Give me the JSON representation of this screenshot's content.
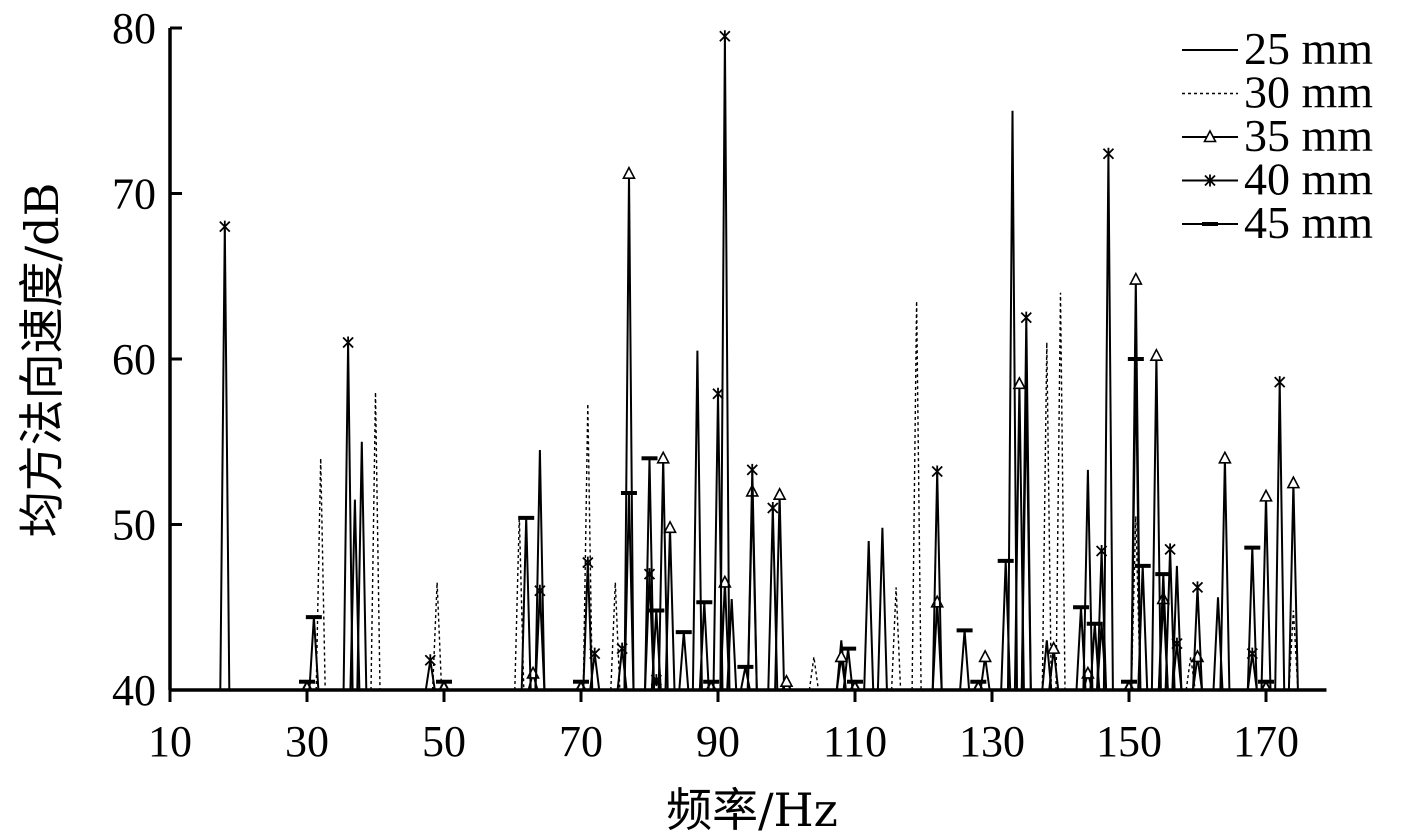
{
  "chart_data": {
    "type": "line",
    "title": "",
    "xlabel": "频率/Hz",
    "ylabel": "均方法向速度/dB",
    "xlim": [
      10,
      180
    ],
    "ylim": [
      40,
      80
    ],
    "x_ticks": [
      10,
      30,
      50,
      70,
      90,
      110,
      130,
      150,
      170
    ],
    "y_ticks": [
      40,
      50,
      60,
      70,
      80
    ],
    "legend_position": "top-right",
    "grid": false,
    "baseline": 40,
    "series": [
      {
        "name": "25 mm",
        "style": "solid",
        "marker": "none",
        "peaks": [
          [
            37,
            51.5
          ],
          [
            38,
            55
          ],
          [
            64,
            54.5
          ],
          [
            87,
            60.5
          ],
          [
            92,
            45.5
          ],
          [
            108,
            43
          ],
          [
            112,
            49
          ],
          [
            114,
            49.8
          ],
          [
            133,
            75
          ],
          [
            135,
            58
          ],
          [
            138,
            43
          ],
          [
            144,
            53.3
          ],
          [
            146,
            44
          ],
          [
            157,
            47.5
          ],
          [
            163,
            45.6
          ]
        ]
      },
      {
        "name": "30 mm",
        "style": "dotted",
        "marker": "none",
        "peaks": [
          [
            32,
            54
          ],
          [
            40,
            58
          ],
          [
            49,
            46.5
          ],
          [
            61,
            50.5
          ],
          [
            71,
            57.3
          ],
          [
            75,
            46.5
          ],
          [
            104,
            42
          ],
          [
            116,
            46.2
          ],
          [
            119,
            63.5
          ],
          [
            138,
            61
          ],
          [
            140,
            64
          ],
          [
            151,
            50.5
          ],
          [
            159,
            42
          ],
          [
            174,
            44.8
          ]
        ]
      },
      {
        "name": "35 mm",
        "style": "solid",
        "marker": "triangle",
        "peaks": [
          [
            63,
            41
          ],
          [
            77,
            71.2
          ],
          [
            82,
            54
          ],
          [
            83,
            49.8
          ],
          [
            91,
            46.5
          ],
          [
            95,
            52
          ],
          [
            99,
            51.8
          ],
          [
            100,
            40.5
          ],
          [
            108,
            42
          ],
          [
            122,
            45.3
          ],
          [
            129,
            42
          ],
          [
            134,
            58.5
          ],
          [
            139,
            42.5
          ],
          [
            144,
            41
          ],
          [
            151,
            64.8
          ],
          [
            154,
            60.2
          ],
          [
            155,
            45.5
          ],
          [
            160,
            42
          ],
          [
            164,
            54
          ],
          [
            170,
            51.7
          ],
          [
            174,
            52.5
          ]
        ]
      },
      {
        "name": "40 mm",
        "style": "solid",
        "marker": "star",
        "peaks": [
          [
            18,
            68
          ],
          [
            36,
            61
          ],
          [
            48,
            41.8
          ],
          [
            64,
            46
          ],
          [
            71,
            47.7
          ],
          [
            72,
            42.2
          ],
          [
            76,
            42.5
          ],
          [
            80,
            47
          ],
          [
            81,
            40.6
          ],
          [
            90,
            57.9
          ],
          [
            91,
            79.5
          ],
          [
            95,
            53.3
          ],
          [
            98,
            51
          ],
          [
            122,
            53.2
          ],
          [
            135,
            62.5
          ],
          [
            146,
            48.4
          ],
          [
            147,
            72.4
          ],
          [
            156,
            48.5
          ],
          [
            157,
            42.8
          ],
          [
            160,
            46.2
          ],
          [
            168,
            42.2
          ],
          [
            172,
            58.6
          ]
        ]
      },
      {
        "name": "45 mm",
        "style": "solid",
        "marker": "dash",
        "peaks": [
          [
            30,
            40.5
          ],
          [
            31,
            44.4
          ],
          [
            50,
            40.5
          ],
          [
            62,
            50.4
          ],
          [
            70,
            40.5
          ],
          [
            77,
            51.9
          ],
          [
            80,
            54
          ],
          [
            81,
            44.8
          ],
          [
            85,
            43.5
          ],
          [
            88,
            45.3
          ],
          [
            89,
            40.5
          ],
          [
            94,
            41.4
          ],
          [
            109,
            42.5
          ],
          [
            110,
            40.5
          ],
          [
            126,
            43.6
          ],
          [
            128,
            40.5
          ],
          [
            132,
            47.8
          ],
          [
            143,
            45
          ],
          [
            145,
            44
          ],
          [
            150,
            40.5
          ],
          [
            151,
            60
          ],
          [
            152,
            47.5
          ],
          [
            155,
            47
          ],
          [
            168,
            48.6
          ],
          [
            170,
            40.5
          ]
        ]
      }
    ]
  }
}
